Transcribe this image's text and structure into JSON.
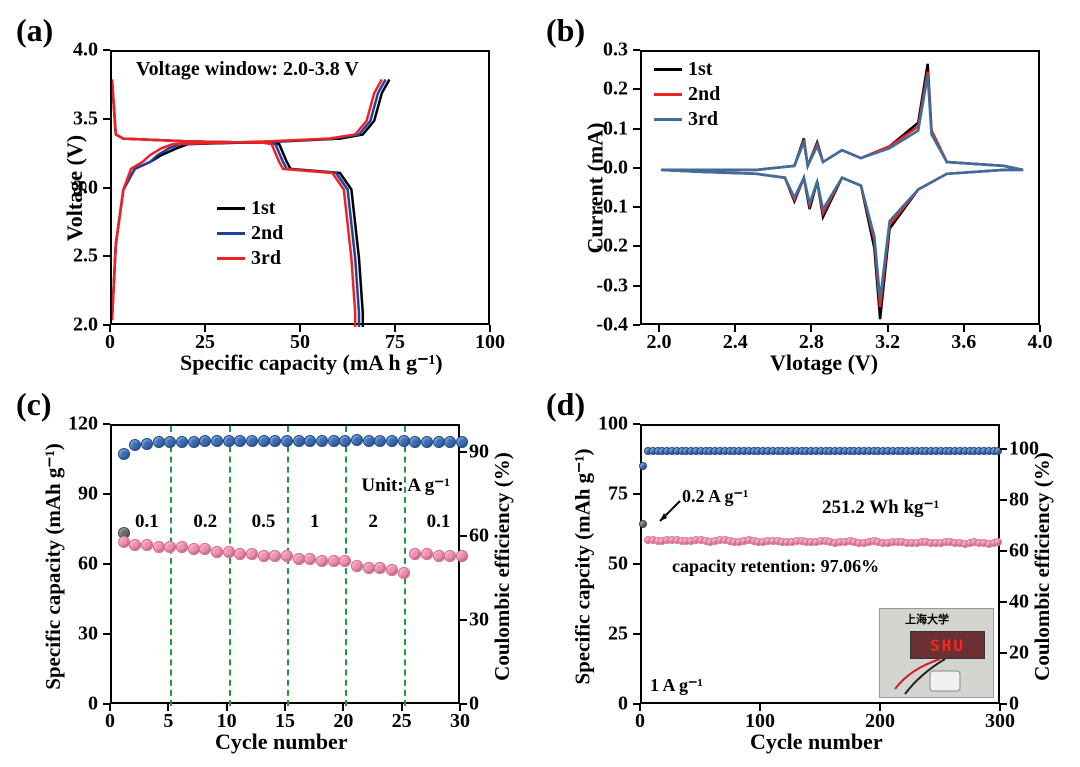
{
  "bg": "#ffffff",
  "colors": {
    "black": "#000000",
    "red": "#ee2222",
    "blue": "#2040a0",
    "steelblue": "#3b6fa0",
    "pink_marker": "#e86f9e",
    "pink_fill": "#f08fae",
    "blue_marker": "#3a6db8",
    "gray_marker": "#6a6a6a",
    "green_dash": "#1a9e3a",
    "inset_bg": "#d4d4d0",
    "shu_bg": "#6a3032",
    "shu_text": "#ff2222"
  },
  "panel_a": {
    "label": "(a)",
    "type": "line",
    "xlabel": "Specific capacity (mA h g⁻¹)",
    "ylabel": "Voltage (V)",
    "title_fontsize": 22,
    "tick_fontsize": 20,
    "xlim": [
      0,
      100
    ],
    "xtick_step": 25,
    "ylim": [
      2.0,
      4.0
    ],
    "ytick_step": 0.5,
    "annotation": "Voltage window: 2.0-3.8 V",
    "legend": [
      {
        "label": "1st",
        "color": "#000000"
      },
      {
        "label": "2nd",
        "color": "#2040a0"
      },
      {
        "label": "3rd",
        "color": "#ee2222"
      }
    ],
    "series": {
      "1st_discharge": [
        [
          0,
          3.8
        ],
        [
          1,
          3.4
        ],
        [
          3,
          3.37
        ],
        [
          20,
          3.35
        ],
        [
          40,
          3.34
        ],
        [
          44,
          3.33
        ],
        [
          46,
          3.2
        ],
        [
          47,
          3.15
        ],
        [
          60,
          3.12
        ],
        [
          63,
          3.0
        ],
        [
          65,
          2.5
        ],
        [
          66,
          2.1
        ],
        [
          66,
          2.0
        ]
      ],
      "1st_charge": [
        [
          0,
          2.05
        ],
        [
          1,
          2.6
        ],
        [
          3,
          3.0
        ],
        [
          6,
          3.15
        ],
        [
          10,
          3.2
        ],
        [
          13,
          3.25
        ],
        [
          17,
          3.3
        ],
        [
          20,
          3.33
        ],
        [
          45,
          3.35
        ],
        [
          60,
          3.37
        ],
        [
          66,
          3.4
        ],
        [
          69,
          3.5
        ],
        [
          71,
          3.7
        ],
        [
          73,
          3.8
        ]
      ],
      "2nd_discharge": [
        [
          0,
          3.8
        ],
        [
          1,
          3.4
        ],
        [
          3,
          3.37
        ],
        [
          20,
          3.35
        ],
        [
          40,
          3.34
        ],
        [
          43,
          3.33
        ],
        [
          45,
          3.2
        ],
        [
          46,
          3.15
        ],
        [
          59,
          3.12
        ],
        [
          62,
          3.0
        ],
        [
          64,
          2.5
        ],
        [
          65,
          2.1
        ],
        [
          65,
          2.0
        ]
      ],
      "2nd_charge": [
        [
          0,
          2.05
        ],
        [
          1,
          2.6
        ],
        [
          3,
          3.0
        ],
        [
          6,
          3.15
        ],
        [
          10,
          3.2
        ],
        [
          12,
          3.25
        ],
        [
          15,
          3.3
        ],
        [
          18,
          3.33
        ],
        [
          43,
          3.35
        ],
        [
          58,
          3.37
        ],
        [
          65,
          3.4
        ],
        [
          68,
          3.5
        ],
        [
          70,
          3.7
        ],
        [
          72,
          3.8
        ]
      ],
      "3rd_discharge": [
        [
          0,
          3.8
        ],
        [
          1,
          3.4
        ],
        [
          3,
          3.37
        ],
        [
          20,
          3.35
        ],
        [
          40,
          3.34
        ],
        [
          42,
          3.33
        ],
        [
          44,
          3.2
        ],
        [
          45,
          3.15
        ],
        [
          58,
          3.12
        ],
        [
          61,
          3.0
        ],
        [
          63,
          2.5
        ],
        [
          64,
          2.1
        ],
        [
          64,
          2.0
        ]
      ],
      "3rd_charge": [
        [
          0,
          2.05
        ],
        [
          1,
          2.6
        ],
        [
          3,
          3.0
        ],
        [
          5,
          3.15
        ],
        [
          8,
          3.2
        ],
        [
          10,
          3.25
        ],
        [
          13,
          3.3
        ],
        [
          16,
          3.33
        ],
        [
          41,
          3.35
        ],
        [
          57,
          3.37
        ],
        [
          64,
          3.4
        ],
        [
          67,
          3.5
        ],
        [
          69,
          3.7
        ],
        [
          71,
          3.8
        ]
      ]
    },
    "series_colors": {
      "1st": "#000000",
      "2nd": "#2040a0",
      "3rd": "#ee2222"
    },
    "line_width": 2.5
  },
  "panel_b": {
    "label": "(b)",
    "type": "line",
    "xlabel": "Vlotage (V)",
    "ylabel": "Current (mA)",
    "title_fontsize": 22,
    "tick_fontsize": 20,
    "xlim": [
      1.9,
      4.0
    ],
    "xticks": [
      2.0,
      2.4,
      2.8,
      3.2,
      3.6,
      4.0
    ],
    "ylim": [
      -0.4,
      0.3
    ],
    "ytick_step": 0.1,
    "legend": [
      {
        "label": "1st",
        "color": "#000000"
      },
      {
        "label": "2nd",
        "color": "#ee2222"
      },
      {
        "label": "3rd",
        "color": "#3b6fa0"
      }
    ],
    "series": {
      "trace1": [
        [
          2.0,
          0.0
        ],
        [
          2.5,
          0.0
        ],
        [
          2.7,
          0.01
        ],
        [
          2.75,
          0.08
        ],
        [
          2.77,
          0.01
        ],
        [
          2.82,
          0.07
        ],
        [
          2.85,
          0.02
        ],
        [
          2.95,
          0.05
        ],
        [
          3.05,
          0.03
        ],
        [
          3.2,
          0.06
        ],
        [
          3.35,
          0.12
        ],
        [
          3.4,
          0.27
        ],
        [
          3.42,
          0.1
        ],
        [
          3.5,
          0.02
        ],
        [
          3.8,
          0.01
        ],
        [
          3.9,
          0.0
        ],
        [
          3.9,
          0.0
        ],
        [
          3.8,
          0.0
        ],
        [
          3.5,
          -0.01
        ],
        [
          3.35,
          -0.05
        ],
        [
          3.2,
          -0.15
        ],
        [
          3.15,
          -0.38
        ],
        [
          3.12,
          -0.2
        ],
        [
          3.05,
          -0.04
        ],
        [
          2.95,
          -0.02
        ],
        [
          2.85,
          -0.12
        ],
        [
          2.82,
          -0.03
        ],
        [
          2.78,
          -0.1
        ],
        [
          2.75,
          -0.02
        ],
        [
          2.7,
          -0.08
        ],
        [
          2.65,
          -0.02
        ],
        [
          2.5,
          -0.01
        ],
        [
          2.2,
          -0.005
        ],
        [
          2.0,
          0.0
        ]
      ],
      "trace2": [
        [
          2.0,
          0.0
        ],
        [
          2.5,
          0.0
        ],
        [
          2.7,
          0.01
        ],
        [
          2.75,
          0.075
        ],
        [
          2.77,
          0.01
        ],
        [
          2.82,
          0.065
        ],
        [
          2.85,
          0.02
        ],
        [
          2.95,
          0.05
        ],
        [
          3.05,
          0.03
        ],
        [
          3.2,
          0.06
        ],
        [
          3.35,
          0.11
        ],
        [
          3.4,
          0.25
        ],
        [
          3.42,
          0.1
        ],
        [
          3.5,
          0.02
        ],
        [
          3.8,
          0.01
        ],
        [
          3.9,
          0.0
        ],
        [
          3.9,
          0.0
        ],
        [
          3.8,
          0.0
        ],
        [
          3.5,
          -0.01
        ],
        [
          3.35,
          -0.05
        ],
        [
          3.2,
          -0.14
        ],
        [
          3.15,
          -0.35
        ],
        [
          3.12,
          -0.18
        ],
        [
          3.05,
          -0.04
        ],
        [
          2.95,
          -0.02
        ],
        [
          2.85,
          -0.11
        ],
        [
          2.82,
          -0.03
        ],
        [
          2.78,
          -0.09
        ],
        [
          2.75,
          -0.02
        ],
        [
          2.7,
          -0.075
        ],
        [
          2.65,
          -0.02
        ],
        [
          2.5,
          -0.01
        ],
        [
          2.2,
          -0.005
        ],
        [
          2.0,
          0.0
        ]
      ],
      "trace3": [
        [
          2.0,
          0.0
        ],
        [
          2.5,
          0.0
        ],
        [
          2.7,
          0.01
        ],
        [
          2.75,
          0.07
        ],
        [
          2.77,
          0.01
        ],
        [
          2.82,
          0.06
        ],
        [
          2.85,
          0.02
        ],
        [
          2.95,
          0.05
        ],
        [
          3.05,
          0.03
        ],
        [
          3.2,
          0.055
        ],
        [
          3.35,
          0.1
        ],
        [
          3.4,
          0.24
        ],
        [
          3.42,
          0.09
        ],
        [
          3.5,
          0.02
        ],
        [
          3.8,
          0.01
        ],
        [
          3.9,
          0.0
        ],
        [
          3.9,
          0.0
        ],
        [
          3.8,
          0.0
        ],
        [
          3.5,
          -0.01
        ],
        [
          3.35,
          -0.05
        ],
        [
          3.2,
          -0.13
        ],
        [
          3.15,
          -0.33
        ],
        [
          3.12,
          -0.17
        ],
        [
          3.05,
          -0.04
        ],
        [
          2.95,
          -0.02
        ],
        [
          2.85,
          -0.1
        ],
        [
          2.82,
          -0.03
        ],
        [
          2.78,
          -0.085
        ],
        [
          2.75,
          -0.02
        ],
        [
          2.7,
          -0.07
        ],
        [
          2.65,
          -0.02
        ],
        [
          2.5,
          -0.01
        ],
        [
          2.2,
          -0.005
        ],
        [
          2.0,
          0.0
        ]
      ]
    },
    "series_colors": {
      "trace1": "#000000",
      "trace2": "#ee2222",
      "trace3": "#3b6fa0"
    },
    "line_width": 2.5
  },
  "panel_c": {
    "label": "(c)",
    "type": "scatter-dual-y",
    "xlabel": "Cycle number",
    "ylabel": "Specific capacity (mAh g⁻¹)",
    "y2label": "Coulombic efficiency (%)",
    "title_fontsize": 22,
    "tick_fontsize": 20,
    "xlim": [
      0,
      30
    ],
    "xtick_step": 5,
    "ylim": [
      0,
      120
    ],
    "ytick_step": 30,
    "y2lim": [
      0,
      100
    ],
    "y2ticks": [
      0,
      30,
      60,
      90
    ],
    "rates_annot": [
      "0.1",
      "0.2",
      "0.5",
      "1",
      "2",
      "0.1"
    ],
    "unit_label": "Unit: A g⁻¹",
    "marker_size": 12,
    "dashed_x": [
      5,
      10,
      15,
      20,
      25
    ],
    "capacity_pink": [
      70,
      69,
      69,
      68,
      68,
      68,
      67,
      67,
      66,
      66,
      65,
      65,
      64,
      64,
      64,
      63,
      63,
      62,
      62,
      62,
      60,
      59,
      59,
      58,
      57,
      65,
      65,
      64,
      64,
      64
    ],
    "capacity_gray": [
      74,
      69,
      69,
      68,
      68,
      68,
      67,
      67,
      66,
      66,
      65,
      65,
      64,
      64,
      64,
      63,
      63,
      62,
      62,
      62,
      60,
      59,
      59,
      58,
      57,
      65,
      65,
      64,
      64,
      64
    ],
    "ce_blue": [
      90,
      93,
      93.5,
      94,
      94,
      94,
      94.2,
      94.3,
      94.3,
      94.3,
      94.4,
      94.4,
      94.4,
      94.4,
      94.4,
      94.5,
      94.5,
      94.5,
      94.5,
      94.5,
      94.9,
      94.6,
      94.6,
      94.6,
      94.6,
      94.2,
      94.2,
      94.2,
      94.2,
      94.2
    ]
  },
  "panel_d": {
    "label": "(d)",
    "type": "scatter-dual-y",
    "xlabel": "Cycle number",
    "ylabel": "Specific capcity (mAh g⁻¹)",
    "y2label": "Coulombic efficiency (%)",
    "title_fontsize": 22,
    "tick_fontsize": 20,
    "xlim": [
      0,
      300
    ],
    "xtick_step": 100,
    "ylim": [
      0,
      100
    ],
    "ytick_step": 25,
    "y2lim": [
      0,
      110
    ],
    "y2tick_step": 20,
    "annot1": "0.2 A g⁻¹",
    "annot2": "251.2 Wh kg⁻¹",
    "annot3": "capacity retention: 97.06%",
    "annot4": "1 A g⁻¹",
    "inset": {
      "text": "SHU",
      "caption": "上海大学"
    },
    "capacity_value": 59,
    "capacity_first": 65,
    "ce_value": 100,
    "ce_first": 94,
    "marker_size": 8
  }
}
